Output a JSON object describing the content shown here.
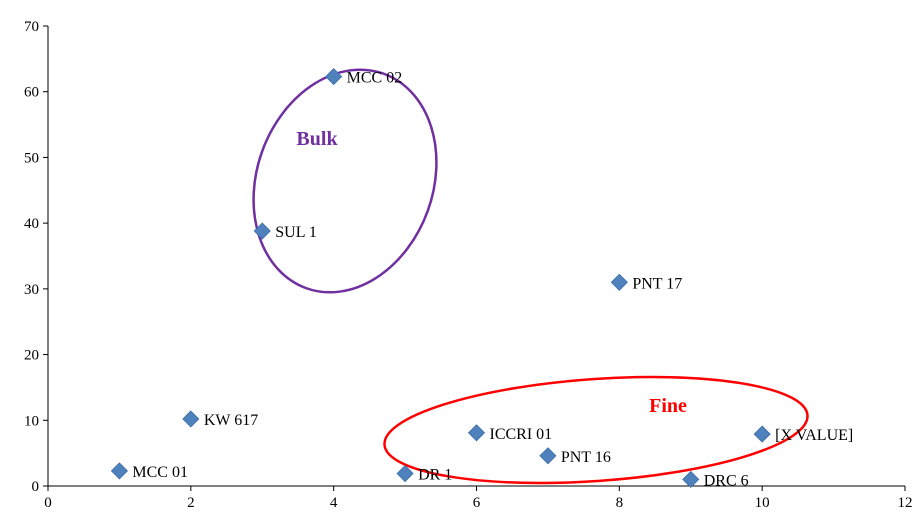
{
  "chart_data": {
    "type": "scatter",
    "title": "",
    "xlabel": "",
    "ylabel": "",
    "xlim": [
      0,
      12
    ],
    "ylim": [
      0,
      70
    ],
    "x_ticks": [
      0,
      2,
      4,
      6,
      8,
      10,
      12
    ],
    "y_ticks": [
      0,
      10,
      20,
      30,
      40,
      50,
      60,
      70
    ],
    "grid": false,
    "marker_color": "#4f81bd",
    "points": [
      {
        "label": "MCC 01",
        "x": 1,
        "y": 2.3
      },
      {
        "label": "KW 617",
        "x": 2,
        "y": 10.2
      },
      {
        "label": "SUL 1",
        "x": 3,
        "y": 38.8
      },
      {
        "label": "MCC 02",
        "x": 4,
        "y": 62.3
      },
      {
        "label": "DR 1",
        "x": 5,
        "y": 1.9
      },
      {
        "label": "ICCRI 01",
        "x": 6,
        "y": 8.1
      },
      {
        "label": "PNT 16",
        "x": 7,
        "y": 4.6
      },
      {
        "label": "PNT 17",
        "x": 8,
        "y": 31
      },
      {
        "label": "DRC 6",
        "x": 9,
        "y": 1
      },
      {
        "label": "[X VALUE]",
        "x": 10,
        "y": 7.9
      }
    ],
    "annotations": [
      {
        "text": "Bulk",
        "color": "#7030a0",
        "members": [
          "SUL 1",
          "MCC 02"
        ]
      },
      {
        "text": "Fine",
        "color": "#ff0000",
        "members": [
          "DR 1",
          "ICCRI 01",
          "PNT 16",
          "DRC 6",
          "[X VALUE]"
        ]
      }
    ]
  }
}
